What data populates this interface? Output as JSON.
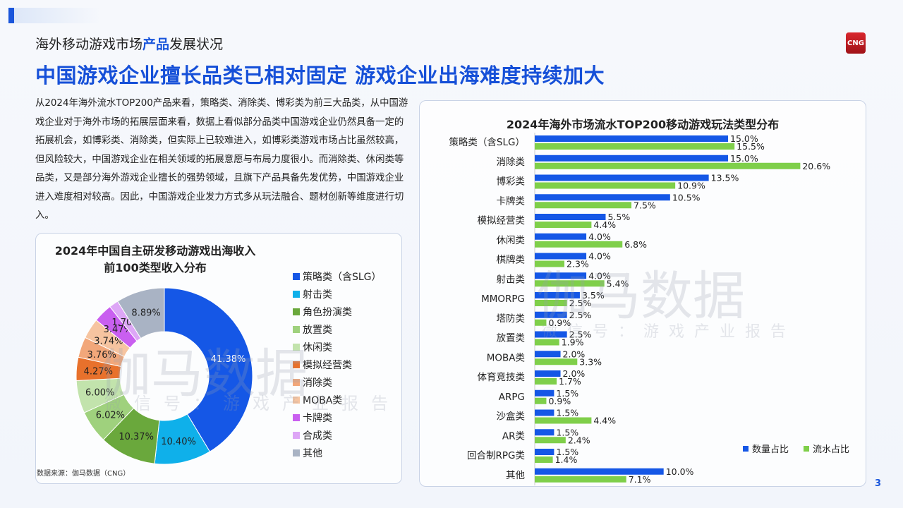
{
  "header": {
    "subtitle_pre": "海外移动游戏市场",
    "subtitle_hl": "产品",
    "subtitle_post": "发展状况",
    "title": "中国游戏企业擅长品类已相对固定 游戏企业出海难度持续加大",
    "logo": "CNG"
  },
  "body_text": "从2024年海外流水TOP200产品来看，策略类、消除类、博彩类为前三大品类，从中国游戏企业对于海外市场的拓展层面来看，数据上看似部分品类中国游戏企业仍然具备一定的拓展机会，如博彩类、消除类，但实际上已较难进入，如博彩类游戏市场占比虽然较高，但风险较大，中国游戏企业在相关领域的拓展意愿与布局力度很小。而消除类、休闲类等品类，又是部分海外游戏企业擅长的强势领域，且旗下产品具备先发优势，中国游戏企业进入难度相对较高。因此，中国游戏企业发力方式多从玩法融合、题材创新等维度进行切入。",
  "source": "数据来源：伽马数据（CNG）",
  "page_number": "3",
  "watermark": {
    "main": "伽马数据",
    "sub": "微信号：游戏产业报告"
  },
  "chart_data": [
    {
      "type": "pie",
      "title_line1": "2024年中国自主研发移动游戏出海收入",
      "title_line2": "前100类型收入分布",
      "donut": true,
      "legend_position": "right",
      "categories": [
        "策略类（含SLG）",
        "射击类",
        "角色扮演类",
        "放置类",
        "休闲类",
        "模拟经营类",
        "消除类",
        "MOBA类",
        "卡牌类",
        "合成类",
        "其他"
      ],
      "values": [
        41.38,
        10.4,
        10.37,
        6.02,
        6.0,
        4.27,
        3.76,
        3.74,
        3.47,
        1.7,
        8.89
      ],
      "labels": [
        "41.38%",
        "10.40%",
        "10.37%",
        "6.02%",
        "6.00%",
        "4.27%",
        "3.76%",
        "3.74%",
        "3.47%",
        "1.70%",
        "8.89%"
      ],
      "colors": [
        "#1557e6",
        "#0fb0ea",
        "#6aa83c",
        "#9fd17d",
        "#c2e3ac",
        "#e8712c",
        "#f2a77a",
        "#f6c4a0",
        "#c95ff0",
        "#dda6f6",
        "#a9b3c4"
      ]
    },
    {
      "type": "bar",
      "orientation": "horizontal",
      "title": "2024年海外市场流水TOP200移动游戏玩法类型分布",
      "legend_position": "bottom-right",
      "categories": [
        "策略类（含SLG）",
        "消除类",
        "博彩类",
        "卡牌类",
        "模拟经营类",
        "休闲类",
        "棋牌类",
        "射击类",
        "MMORPG",
        "塔防类",
        "放置类",
        "MOBA类",
        "体育竞技类",
        "ARPG",
        "沙盒类",
        "AR类",
        "回合制RPG类",
        "其他"
      ],
      "series": [
        {
          "name": "数量占比",
          "color": "#1557e6",
          "values": [
            15.0,
            15.0,
            13.5,
            10.5,
            5.5,
            4.0,
            4.0,
            4.0,
            3.5,
            2.5,
            2.5,
            2.0,
            2.0,
            1.5,
            1.5,
            1.5,
            1.5,
            10.0
          ]
        },
        {
          "name": "流水占比",
          "color": "#7fcf4a",
          "values": [
            15.5,
            20.6,
            10.9,
            7.5,
            4.4,
            6.8,
            2.3,
            5.4,
            2.5,
            0.9,
            1.9,
            3.3,
            1.7,
            0.9,
            4.4,
            2.4,
            1.4,
            7.1
          ]
        }
      ],
      "unit": "%"
    }
  ]
}
